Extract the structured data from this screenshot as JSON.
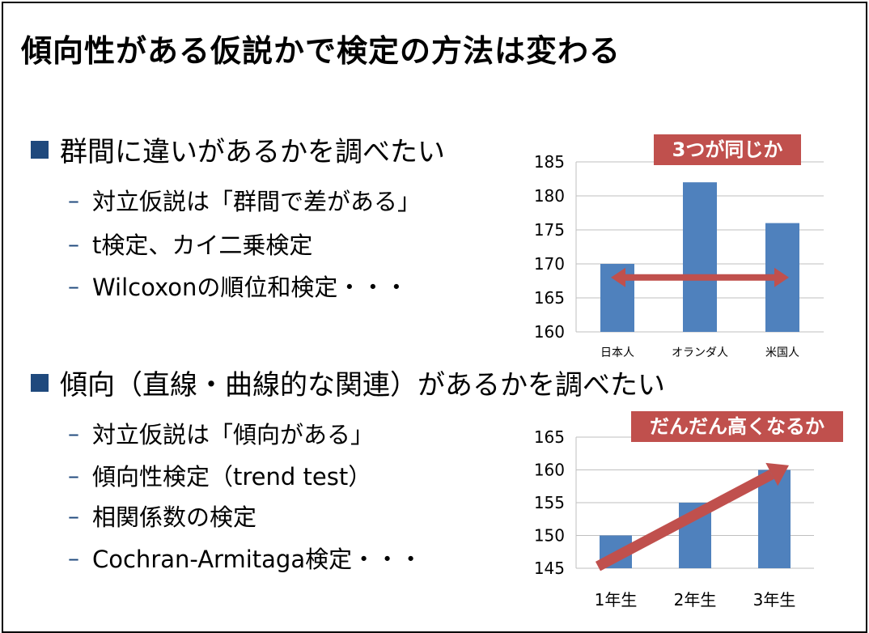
{
  "title": "傾向性がある仮説かで検定の方法は変わる",
  "section1": {
    "heading": "群間に違いがあるかを調べたい",
    "items": [
      "対立仮説は「群間で差がある」",
      "t検定、カイ二乗検定",
      "Wilcoxonの順位和検定・・・"
    ]
  },
  "section2": {
    "heading": "傾向（直線・曲線的な関連）があるかを調べたい",
    "items": [
      "対立仮説は「傾向がある」",
      "傾向性検定（trend test）",
      "相関係数の検定",
      "Cochran-Armitaga検定・・・"
    ]
  },
  "colors": {
    "bar": "#4f81bd",
    "arrow": "#c0504d",
    "label_bg": "#c0504d",
    "bullet": "#1f497d"
  },
  "chart_data": [
    {
      "type": "bar",
      "label": "3つが同じか",
      "categories": [
        "日本人",
        "オランダ人",
        "米国人"
      ],
      "values": [
        170,
        182,
        176
      ],
      "ylim": [
        160,
        185
      ],
      "yticks": [
        160,
        165,
        170,
        175,
        180,
        185
      ],
      "grid": true,
      "annotation": "horizontal double-headed arrow at 168 spanning 日本人 to 米国人"
    },
    {
      "type": "bar",
      "label": "だんだん高くなるか",
      "categories": [
        "1年生",
        "2年生",
        "3年生"
      ],
      "values": [
        150,
        155,
        160
      ],
      "ylim": [
        145,
        165
      ],
      "yticks": [
        145,
        150,
        155,
        160,
        165
      ],
      "grid": true,
      "annotation": "diagonal arrow rising from 1年生 to 3年生"
    }
  ]
}
